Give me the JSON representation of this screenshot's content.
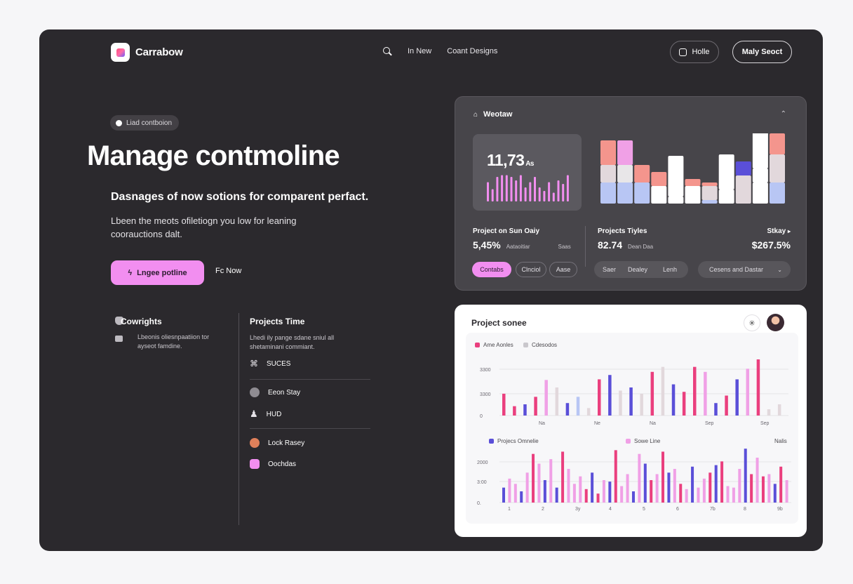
{
  "colors": {
    "accent": "#f28ef0",
    "pink": "#ea3f7e",
    "blue": "#5a4fd8",
    "lightpink": "#f0a0e6",
    "gray": "#e2d8dc",
    "salmon": "#f4958d",
    "lavender": "#b8c6f4"
  },
  "nav": {
    "brand": "Carrabow",
    "links": [
      "In New",
      "Coant Designs"
    ],
    "hello_label": "Holle",
    "start_label": "Maly Seoct"
  },
  "hero": {
    "pill": "Liad contboion",
    "title": "Manage contmoline",
    "subtitle": "Dasnages of now sotions for comparent perfact.",
    "desc": "Lbeen the meots ofiletiogn you low for leaning coorauctions dalt.",
    "primary_button": "Lngee potline",
    "secondary_link": "Fc Now"
  },
  "features": {
    "left_title": "Cowrights",
    "left_desc": "Lbeonis oliesnpaatiion tor ayseot famdine.",
    "right_title": "Projects Time",
    "right_desc": "Lhedi ily pange sdane sniul all shetaminani commiant.",
    "items": [
      "SUCES",
      "Eeon Stay",
      "HUD",
      "Lock Rasey",
      "Oochdas"
    ]
  },
  "widget": {
    "title": "Weotaw",
    "menu": "⌃",
    "stat_value": "11,73",
    "stat_unit": "As",
    "section1_label": "Project on Sun Oaiy",
    "section1_value": "5,45%",
    "section1_small": "Aataoitiar",
    "section1_small2": "Saas",
    "section2_label": "Projects Tiyles",
    "section2_value": "82.74",
    "section2_small": "Dean Daa",
    "section3_label": "Stkay",
    "section3_value": "$267.5%",
    "chips": [
      "Contabs",
      "Clnciol",
      "Aase"
    ],
    "segments": [
      "Saer",
      "Dealey",
      "Lenh"
    ],
    "dropdown": "Cesens and Dastar"
  },
  "chart_data": [
    {
      "type": "bar",
      "title": "Project sonee",
      "series": [
        {
          "name": "Ame Aonles",
          "color": "#ea3f7e"
        },
        {
          "name": "Cdesodos",
          "color": "#c9c7cc"
        }
      ],
      "ytick_labels": [
        "3300",
        "3300",
        "0"
      ],
      "xtick_labels": [
        "Na",
        "Ne",
        "Na",
        "Sep",
        "Sep"
      ],
      "values": [
        35,
        15,
        18,
        30,
        57,
        45,
        20,
        30,
        12,
        58,
        65,
        40,
        45,
        35,
        70,
        78,
        50,
        38,
        78,
        70,
        20,
        32,
        58,
        75,
        90,
        10,
        18
      ],
      "value_colors": [
        "pink",
        "pink",
        "blue",
        "pink",
        "lightpink",
        "gray",
        "blue",
        "lavender",
        "gray",
        "pink",
        "blue",
        "gray",
        "blue",
        "gray",
        "pink",
        "gray",
        "blue",
        "pink",
        "pink",
        "lightpink",
        "blue",
        "pink",
        "blue",
        "lightpink",
        "pink",
        "gray",
        "gray"
      ]
    },
    {
      "type": "bar",
      "series": [
        {
          "name": "Projecs Omnelie",
          "color": "#5a4fd8"
        },
        {
          "name": "Sowe Line",
          "color": "#f0a0e6"
        }
      ],
      "legend_right": "Nalis",
      "ytick_labels": [
        "2000",
        "3:00",
        "0."
      ],
      "xtick_labels": [
        "1",
        "2",
        "3y",
        "4",
        "5",
        "6",
        "7b",
        "8",
        "9b",
        "10b"
      ],
      "values": [
        20,
        32,
        25,
        15,
        40,
        65,
        52,
        30,
        58,
        20,
        68,
        45,
        25,
        35,
        18,
        40,
        12,
        30,
        28,
        70,
        22,
        38,
        15,
        65,
        52,
        30,
        38,
        68,
        40,
        45,
        25,
        18,
        48,
        20,
        32,
        40,
        50,
        55,
        22,
        20,
        45,
        72,
        38,
        60,
        35,
        38,
        25,
        48,
        30
      ],
      "value_colors": [
        "blue",
        "lightpink",
        "lightpink",
        "blue",
        "lightpink",
        "pink",
        "lightpink",
        "blue",
        "lightpink",
        "blue",
        "pink",
        "lightpink",
        "lightpink",
        "lightpink",
        "pink",
        "blue",
        "pink",
        "lightpink",
        "blue",
        "pink",
        "lightpink",
        "lightpink",
        "blue",
        "lightpink",
        "blue",
        "pink",
        "lightpink",
        "pink",
        "blue",
        "lightpink",
        "pink",
        "lightpink",
        "blue",
        "lightpink",
        "lightpink",
        "pink",
        "blue",
        "pink",
        "lightpink",
        "lightpink",
        "lightpink",
        "blue",
        "pink",
        "lightpink",
        "pink",
        "lightpink",
        "blue",
        "pink",
        "lightpink"
      ]
    }
  ],
  "widget_stack": {
    "columns": [
      [
        30,
        25,
        35
      ],
      [
        30,
        25,
        35
      ],
      [
        30,
        25,
        0
      ],
      [
        25,
        20,
        0
      ],
      [
        10,
        58,
        0
      ],
      [
        25,
        10,
        0
      ],
      [
        5,
        20,
        5
      ],
      [
        20,
        50,
        0
      ],
      [
        40,
        20,
        0
      ],
      [
        30,
        20,
        60
      ],
      [
        30,
        40,
        30
      ]
    ],
    "column_colors": [
      [
        "#b8c6f4",
        "#e2d8dc",
        "#f4958d"
      ],
      [
        "#b8c6f4",
        "#e8e6e8",
        "#f0a0e6"
      ],
      [
        "#b8c6f4",
        "#f4958d",
        "#ffffff"
      ],
      [
        "#ffffff",
        "#f4958d",
        "#ffffff"
      ],
      [
        "#ffffff",
        "#ffffff",
        "#f0a0e6"
      ],
      [
        "#ffffff",
        "#f4958d",
        "#ffffff"
      ],
      [
        "#b8c6f4",
        "#e2d8dc",
        "#f4958d"
      ],
      [
        "#ffffff",
        "#ffffff",
        "#f4958d"
      ],
      [
        "#e2d8dc",
        "#5a4fd8",
        "#ffffff"
      ],
      [
        "#ffffff",
        "#ffffff",
        "#ffffff"
      ],
      [
        "#b8c6f4",
        "#e2d8dc",
        "#f4958d"
      ]
    ],
    "mini_bars": [
      22,
      14,
      28,
      30,
      30,
      28,
      24,
      30,
      16,
      22,
      28,
      16,
      12,
      22,
      10,
      24,
      20,
      30
    ]
  }
}
